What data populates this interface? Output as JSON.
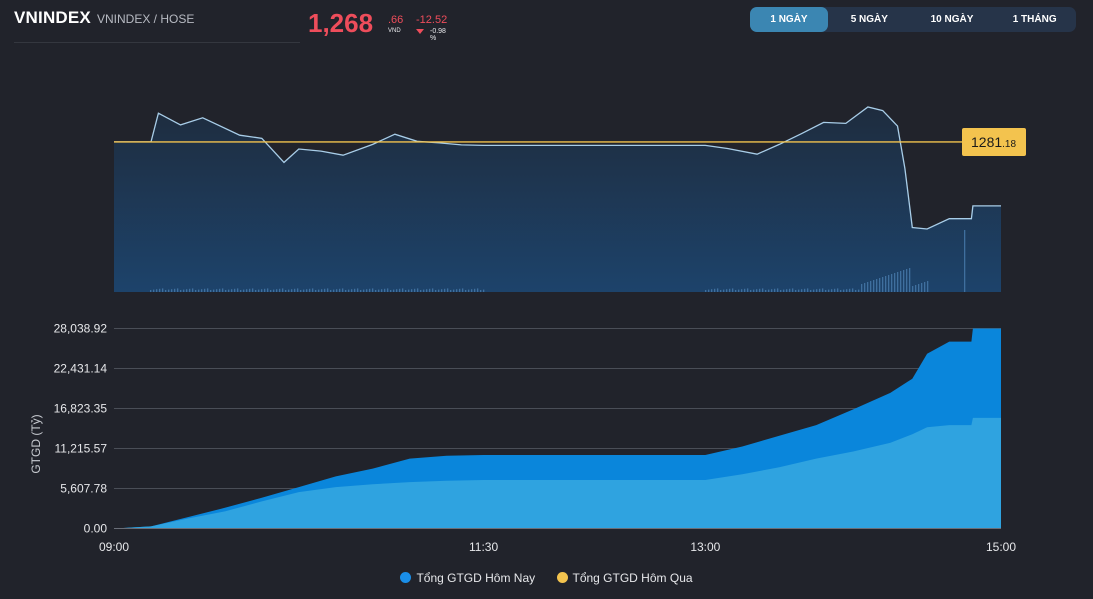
{
  "header": {
    "ticker": "VNINDEX",
    "subtitle": "VNINDEX / HOSE"
  },
  "price": {
    "main": "1,268",
    "decimal": ".66",
    "unit": "VND",
    "change": "-12.52",
    "change_pct": "-0.98 %",
    "color_down": "#ee4d5b"
  },
  "tabs": [
    {
      "label": "1 NGÀY",
      "active": true
    },
    {
      "label": "5 NGÀY",
      "active": false
    },
    {
      "label": "10 NGÀY",
      "active": false
    },
    {
      "label": "1 THÁNG",
      "active": false
    }
  ],
  "reference": {
    "label_int": "1281",
    "label_dec": ".18",
    "color": "#f3c34e"
  },
  "legend": {
    "today": "Tổng GTGD Hôm Nay",
    "yesterday": "Tổng GTGD Hôm Qua",
    "today_color": "#1a8ee8",
    "yesterday_color": "#f3c34e"
  },
  "chart_data": [
    {
      "type": "line",
      "reference_value": 1281.18,
      "x_hours": [
        9.0,
        9.25,
        9.3,
        9.45,
        9.6,
        9.85,
        10.0,
        10.15,
        10.25,
        10.4,
        10.55,
        10.75,
        10.9,
        11.05,
        11.2,
        11.35,
        11.5,
        11.75,
        12.0,
        12.5,
        13.0,
        13.15,
        13.35,
        13.5,
        13.65,
        13.8,
        13.95,
        14.1,
        14.2,
        14.3,
        14.35,
        14.4,
        14.5,
        14.65,
        14.8,
        14.81,
        15.0
      ],
      "values": [
        1281.2,
        1281.2,
        1286.8,
        1284.5,
        1285.9,
        1282.5,
        1281.9,
        1277.2,
        1279.8,
        1279.4,
        1278.6,
        1280.7,
        1282.7,
        1281.3,
        1281.0,
        1280.6,
        1280.5,
        1280.5,
        1280.5,
        1280.5,
        1280.5,
        1279.9,
        1278.8,
        1280.7,
        1282.8,
        1285.0,
        1284.8,
        1288.0,
        1287.3,
        1284.3,
        1276.0,
        1264.5,
        1264.2,
        1266.2,
        1266.2,
        1268.7,
        1268.7
      ]
    },
    {
      "type": "area",
      "ylabel": "GTGD (Tỷ)",
      "y_ticks": [
        "28,038.92",
        "22,431.14",
        "16,823.35",
        "11,215.57",
        "5,607.78",
        "0.00"
      ],
      "ylim": [
        0,
        28038.92
      ],
      "x_ticks": [
        {
          "label": "09:00",
          "hour": 9.0
        },
        {
          "label": "11:30",
          "hour": 11.5
        },
        {
          "label": "13:00",
          "hour": 13.0
        },
        {
          "label": "15:00",
          "hour": 15.0
        }
      ],
      "x_hours": [
        9.0,
        9.25,
        9.5,
        9.75,
        10.0,
        10.25,
        10.5,
        10.75,
        11.0,
        11.25,
        11.5,
        12.0,
        12.5,
        13.0,
        13.25,
        13.5,
        13.75,
        14.0,
        14.25,
        14.4,
        14.5,
        14.65,
        14.8,
        14.81,
        15.0
      ],
      "series": [
        {
          "name": "Tổng GTGD Hôm Nay",
          "values": [
            0,
            300,
            1600,
            2900,
            4300,
            5800,
            7300,
            8400,
            9800,
            10200,
            10300,
            10300,
            10300,
            10300,
            11500,
            13000,
            14500,
            16700,
            19000,
            21000,
            24500,
            26200,
            26200,
            28038.92,
            28038.92
          ]
        },
        {
          "name": "Tổng GTGD Hôm Qua",
          "values": [
            0,
            300,
            1400,
            2400,
            3800,
            5100,
            5800,
            6200,
            6500,
            6700,
            6800,
            6800,
            6800,
            6800,
            7600,
            8600,
            9800,
            10800,
            12000,
            13200,
            14200,
            14500,
            14500,
            15500,
            15500
          ]
        }
      ]
    }
  ]
}
